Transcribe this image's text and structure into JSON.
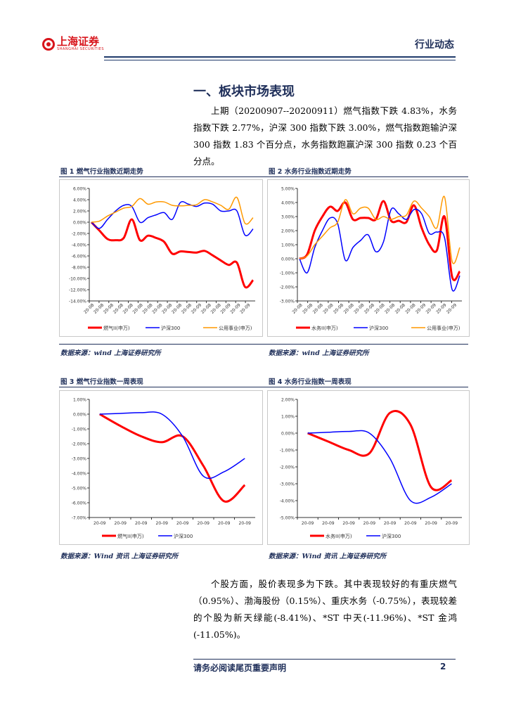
{
  "header": {
    "logo_text": "上海证券",
    "logo_sub": "SHANGHAI SECURITIES",
    "section": "行业动态"
  },
  "heading": "一、板块市场表现",
  "para1": "上期（20200907--20200911）燃气指数下跌 4.83%，水务指数下跌 2.77%，沪深 300 指数下跌 3.00%，燃气指数跑输沪深 300 指数 1.83 个百分点，水务指数跑赢沪深 300 指数 0.23 个百分点。",
  "figures": [
    {
      "title": "图 1 燃气行业指数近期走势",
      "source": "数据来源：wind 上海证券研究所"
    },
    {
      "title": "图 2 水务行业指数近期走势",
      "source": "数据来源：wind  上海证券研究所"
    },
    {
      "title": "图  3  燃气行业指数一周表现",
      "source": "数据来源：Wind 资讯  上海证券研究所"
    },
    {
      "title": "图  4  水务行业指数一周表现",
      "source": "数据来源：Wind 资讯  上海证券研究所"
    }
  ],
  "para2": "个股方面，股价表现多为下跌。其中表现较好的有重庆燃气（0.95%）、渤海股份（0.15%）、重庆水务（-0.75%），表现较差的个股为新天绿能(-8.41%)、*ST 中天(-11.96%)、*ST 金鸿(-11.05%)。",
  "footer": {
    "notice": "请务必阅读尾页重要声明",
    "page": "2"
  },
  "chart_data": [
    {
      "type": "line",
      "ylim": [
        -14,
        6
      ],
      "yticks": [
        "6.00%",
        "4.00%",
        "2.00%",
        "0.00%",
        "-2.00%",
        "-4.00%",
        "-6.00%",
        "-8.00%",
        "-10.00%",
        "-12.00%",
        "-14.00%"
      ],
      "xticks": [
        "20-08",
        "20-08",
        "20-08",
        "20-08",
        "20-08",
        "20-08",
        "20-08",
        "20-08",
        "20-08",
        "20-08",
        "20-08",
        "20-09",
        "20-08",
        "20-08",
        "20-09",
        "20-09",
        "20-09"
      ],
      "series": [
        {
          "name": "燃气II(申万)",
          "color": "#ff0000",
          "width": 3,
          "values": [
            0,
            -1.5,
            -3,
            -3.2,
            -2.8,
            0.5,
            -3.2,
            -2.4,
            -2.8,
            -3.5,
            -5.6,
            -5.2,
            -5.3,
            -5.4,
            -5.1,
            -5.9,
            -6.8,
            -7.6,
            -7.2,
            -11.5,
            -10.3
          ]
        },
        {
          "name": "沪深300",
          "color": "#0000ff",
          "width": 1.5,
          "values": [
            0,
            -1.1,
            0.5,
            2,
            3,
            2.8,
            0,
            0.8,
            1.3,
            1.7,
            0.5,
            3.5,
            3.2,
            2.8,
            3.4,
            3.2,
            2,
            2,
            2,
            -2.3,
            -1.2
          ]
        },
        {
          "name": "公用事业(申万)",
          "color": "#ff9900",
          "width": 1.5,
          "values": [
            0,
            0.2,
            1.1,
            1.8,
            2.5,
            2.8,
            4.2,
            3.2,
            3.6,
            3.6,
            3,
            2.9,
            3.0,
            3.1,
            4.0,
            3.6,
            3,
            2.3,
            4.4,
            -0.2,
            0.8
          ]
        }
      ]
    },
    {
      "type": "line",
      "ylim": [
        -3,
        5
      ],
      "yticks": [
        "5.00%",
        "4.00%",
        "3.00%",
        "2.00%",
        "1.00%",
        "0.00%",
        "-1.00%",
        "-2.00%",
        "-3.00%"
      ],
      "xticks": [
        "20-08",
        "20-08",
        "20-08",
        "20-08",
        "20-08",
        "20-08",
        "20-08",
        "20-08",
        "20-08",
        "20-08",
        "20-08",
        "20-08",
        "20-09",
        "20-09",
        "20-09",
        "20-09"
      ],
      "series": [
        {
          "name": "水务II(申万)",
          "color": "#ff0000",
          "width": 3,
          "values": [
            0,
            0.3,
            2,
            3,
            3.7,
            3.4,
            4,
            2.8,
            2.9,
            2.9,
            2.8,
            4.1,
            2.7,
            2.7,
            2.6,
            3.8,
            2.2,
            1.0,
            0.6,
            3.0,
            -1.3,
            -0.9
          ]
        },
        {
          "name": "沪深300",
          "color": "#0000ff",
          "width": 1.5,
          "values": [
            0,
            -1.0,
            0.8,
            2,
            2.9,
            2.5,
            -0.1,
            0.8,
            1.3,
            1.7,
            0.5,
            1.2,
            3.5,
            3.2,
            2.8,
            3.5,
            3.2,
            1.8,
            1.9,
            1.5,
            -2.2,
            -1.2
          ]
        },
        {
          "name": "公用事业(申万)",
          "color": "#ff9900",
          "width": 1.5,
          "values": [
            0,
            0.2,
            1.0,
            1.6,
            2.2,
            2.6,
            4.2,
            3.2,
            3.6,
            3.6,
            2.8,
            3.0,
            2.8,
            3.0,
            3.1,
            4.1,
            3.6,
            3.0,
            2.2,
            4.4,
            -0.2,
            0.8
          ]
        }
      ]
    },
    {
      "type": "line",
      "ylim": [
        -7,
        1
      ],
      "yticks": [
        "1.00%",
        "0.00%",
        "-1.00%",
        "-2.00%",
        "-3.00%",
        "-4.00%",
        "-5.00%",
        "-6.00%",
        "-7.00%"
      ],
      "xticks": [
        "20-09",
        "20-09",
        "20-09",
        "20-09",
        "20-09",
        "20-09",
        "20-09",
        "20-09"
      ],
      "series": [
        {
          "name": "燃气II(申万)",
          "color": "#ff0000",
          "width": 3,
          "values": [
            0,
            -0.8,
            -1.5,
            -1.9,
            -1.5,
            -3.5,
            -5.9,
            -4.8
          ]
        },
        {
          "name": "沪深300",
          "color": "#0000ff",
          "width": 1.5,
          "values": [
            0,
            0.05,
            0.1,
            0,
            -1.5,
            -4.2,
            -3.9,
            -3.0
          ]
        }
      ]
    },
    {
      "type": "line",
      "ylim": [
        -5,
        2
      ],
      "yticks": [
        "2.00%",
        "1.00%",
        "0.00%",
        "-1.00%",
        "-2.00%",
        "-3.00%",
        "-4.00%",
        "-5.00%"
      ],
      "xticks": [
        "20-09",
        "20-09",
        "20-09",
        "20-09",
        "20-09",
        "20-09",
        "20-09",
        "20-09"
      ],
      "series": [
        {
          "name": "水务II(申万)",
          "color": "#ff0000",
          "width": 3,
          "values": [
            0,
            -0.5,
            -1.0,
            -1.2,
            1.2,
            0.5,
            -3.2,
            -2.8
          ]
        },
        {
          "name": "沪深300",
          "color": "#0000ff",
          "width": 1.5,
          "values": [
            0,
            0.05,
            0.1,
            0,
            -1.5,
            -4.0,
            -3.8,
            -3.0
          ]
        }
      ]
    }
  ]
}
